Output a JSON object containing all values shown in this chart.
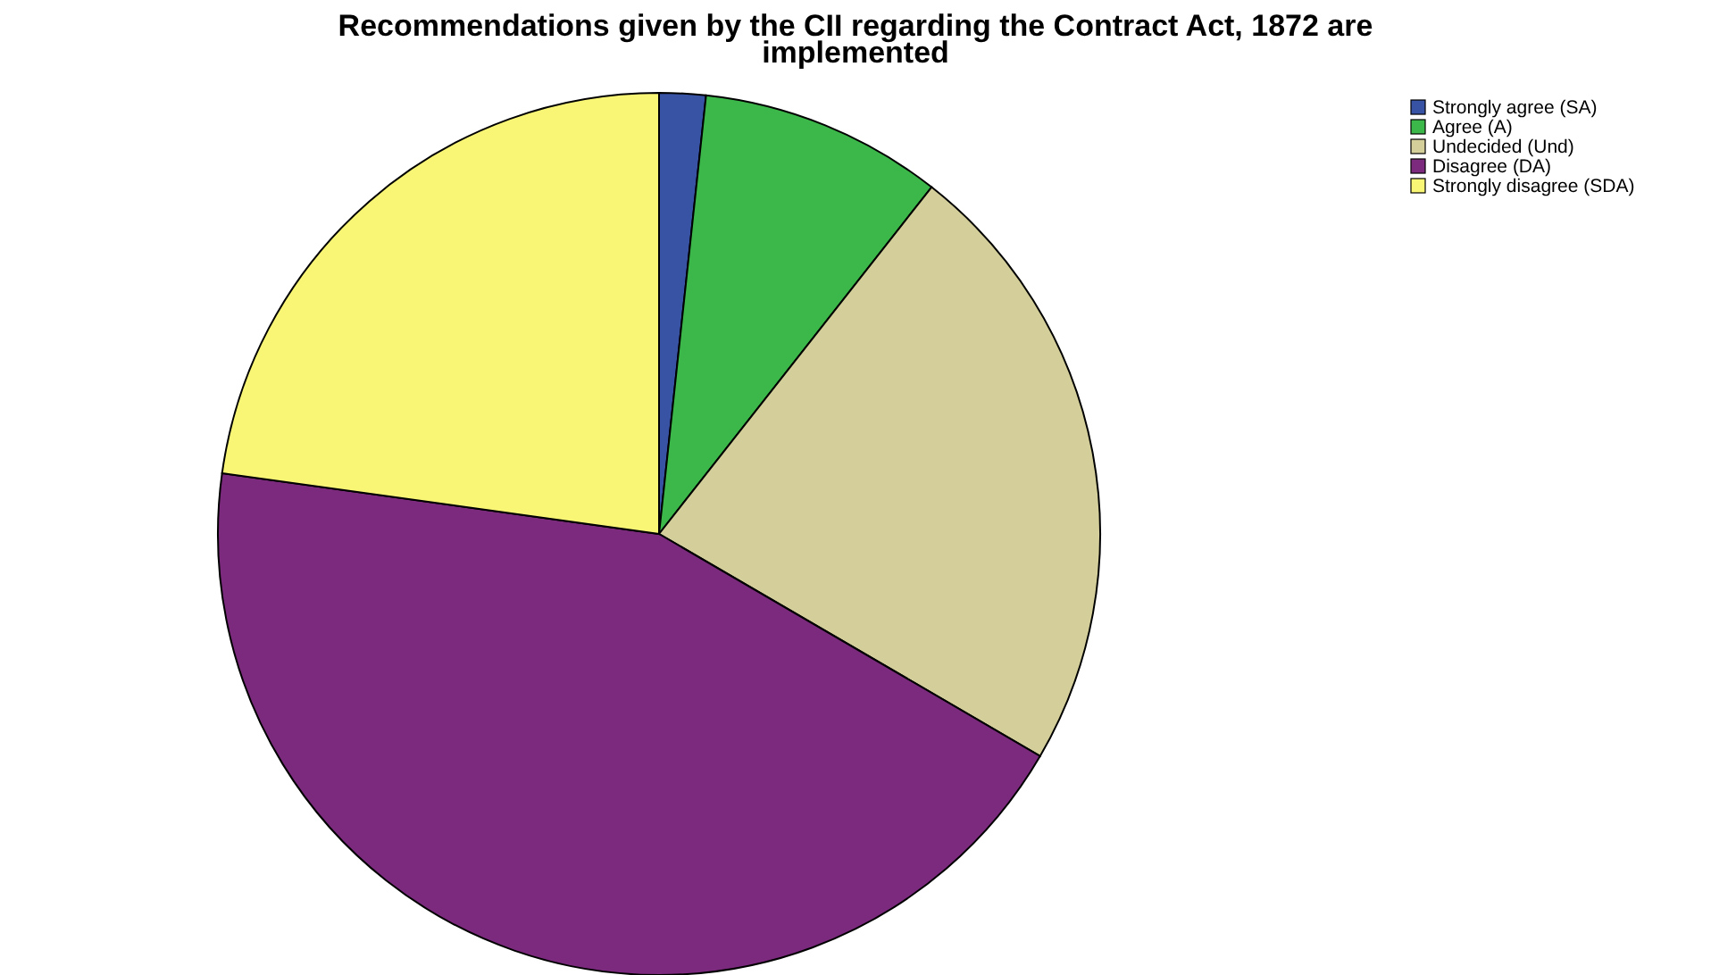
{
  "chart_data": {
    "type": "pie",
    "title": "Recommendations given by the CII regarding the Contract Act, 1872 are implemented",
    "categories": [
      "Strongly agree (SA)",
      "Agree (A)",
      "Undecided (Und)",
      "Disagree (DA)",
      "Strongly disagree (SDA)"
    ],
    "values": [
      1.7,
      8.9,
      22.8,
      43.8,
      22.8
    ],
    "colors": [
      "#3953a4",
      "#3cb84a",
      "#d4cf9a",
      "#7b2a7d",
      "#f9f676"
    ],
    "legend": "top right"
  }
}
